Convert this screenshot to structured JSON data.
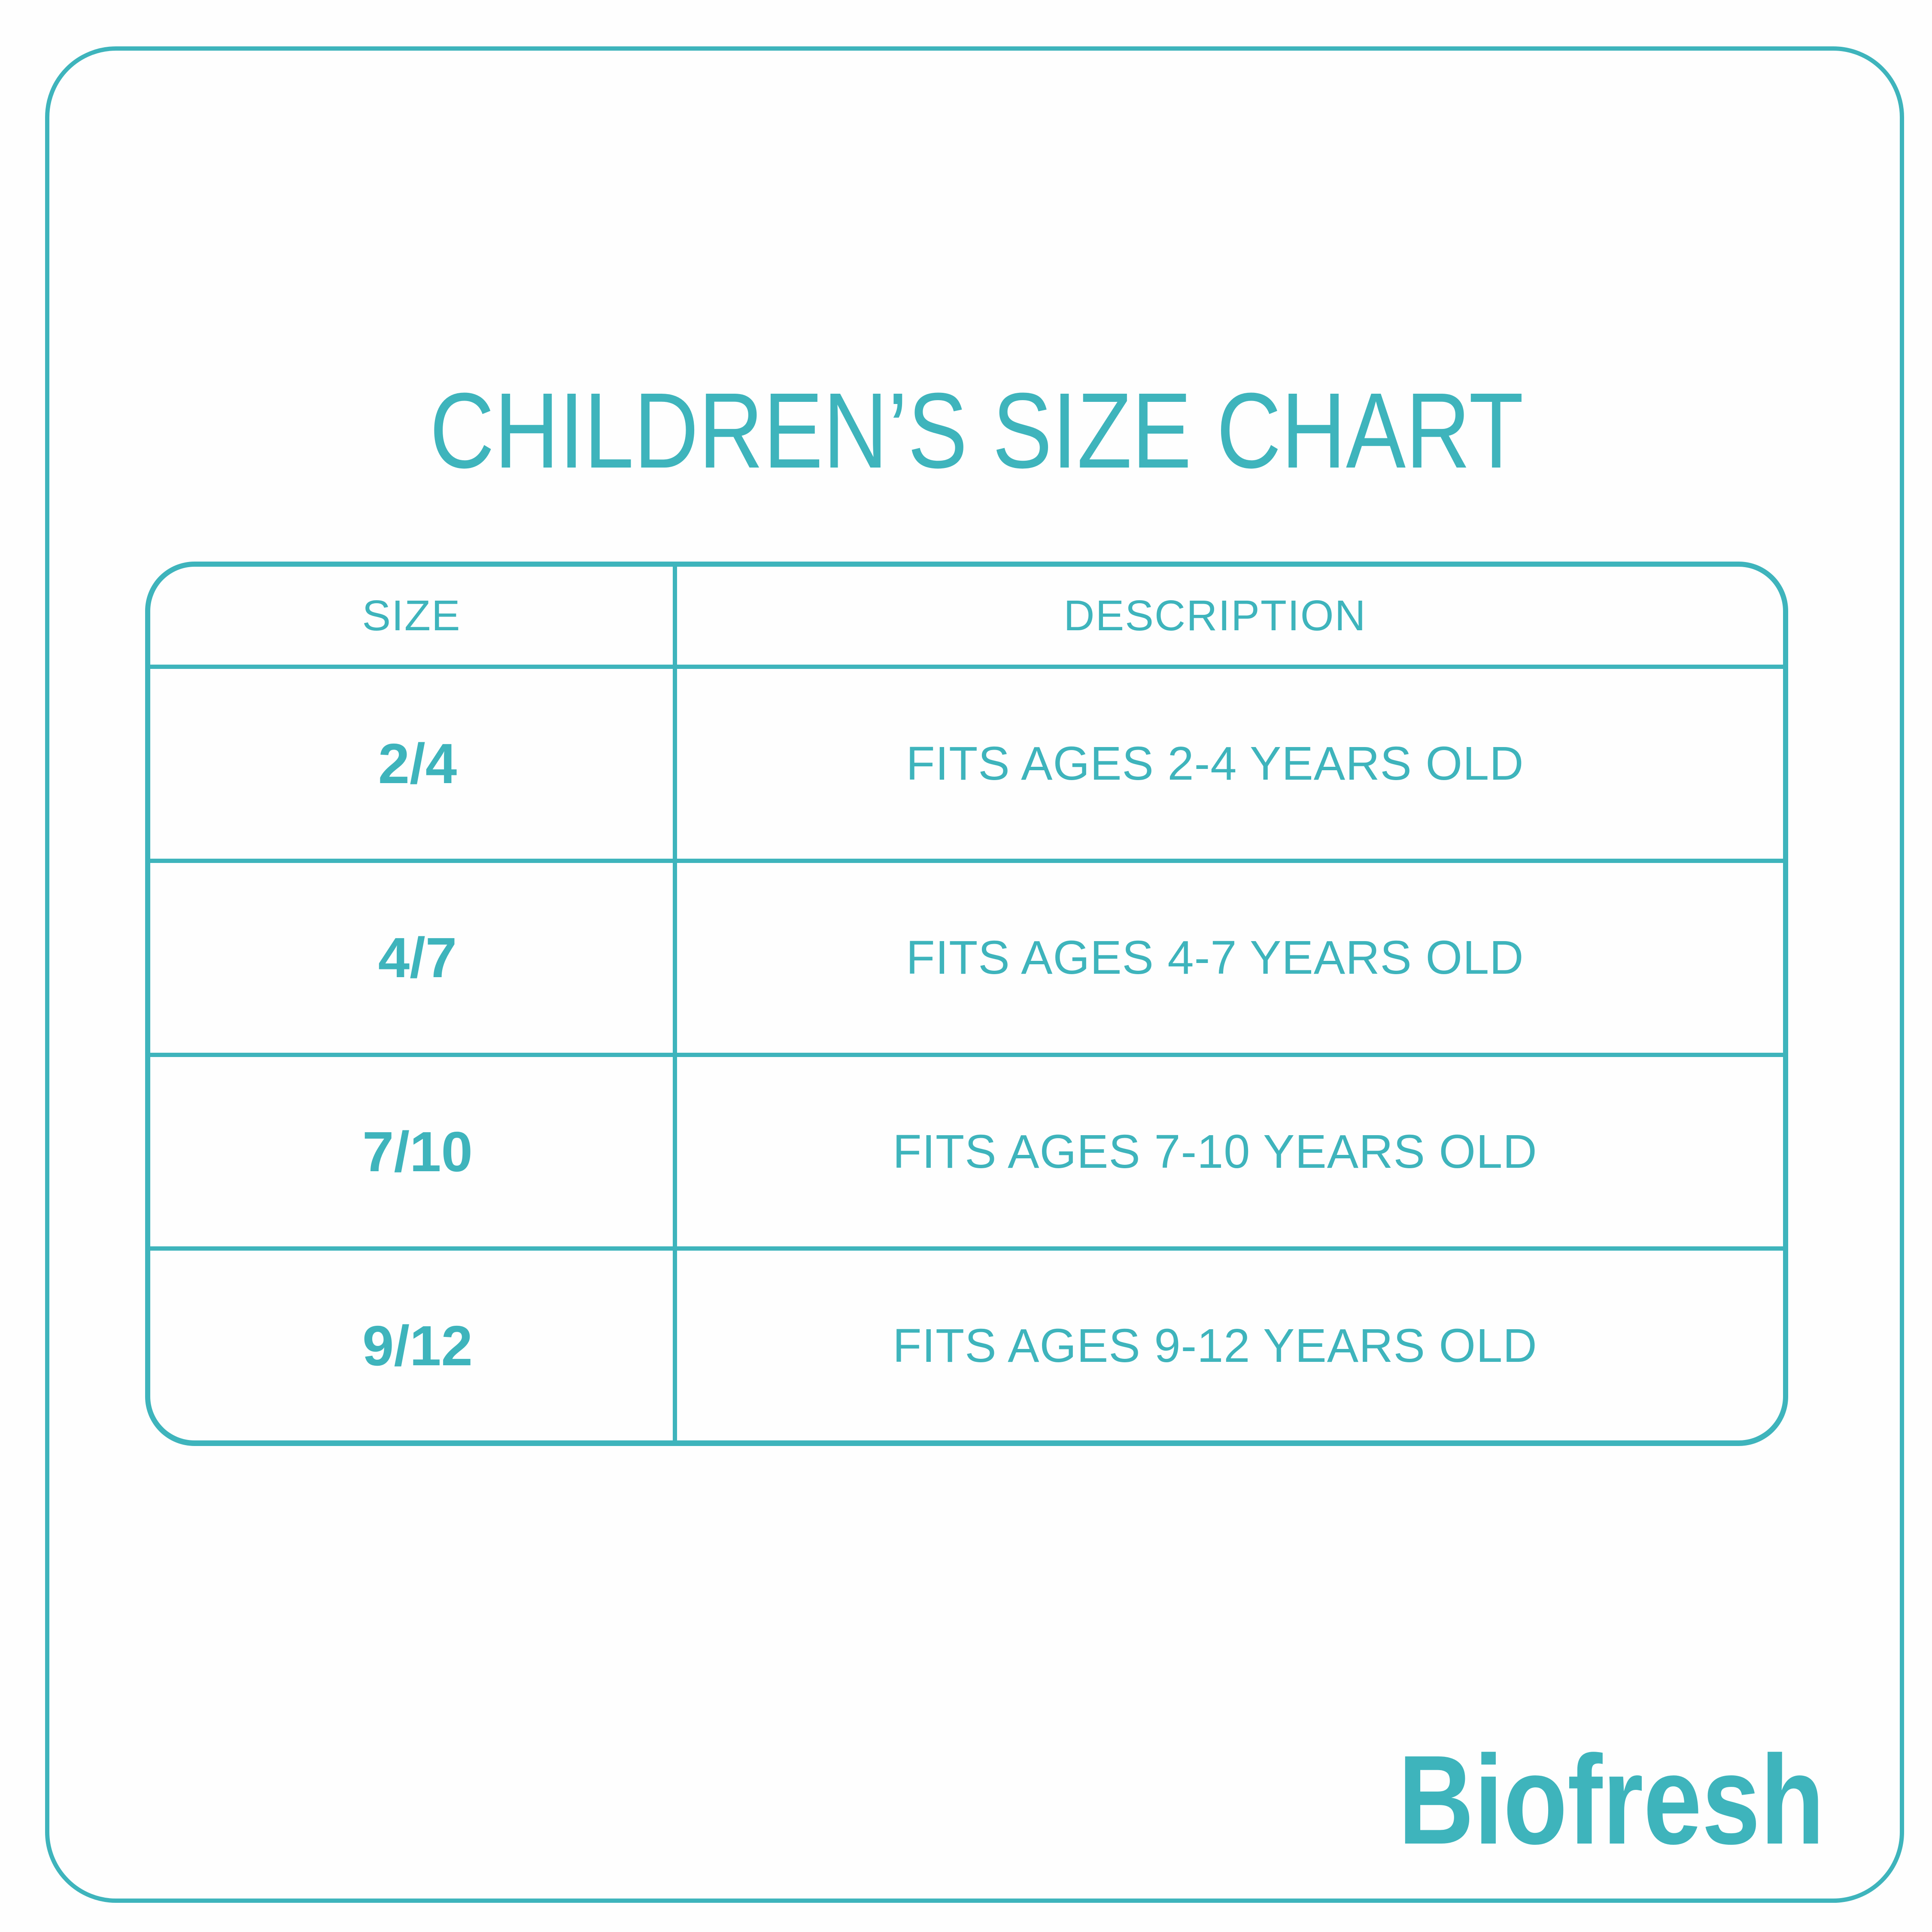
{
  "page": {
    "title": "CHILDREN’S SIZE CHART"
  },
  "table": {
    "columns": [
      "SIZE",
      "DESCRIPTION"
    ],
    "rows": [
      {
        "size": "2/4",
        "description": "FITS AGES 2-4 YEARS OLD"
      },
      {
        "size": "4/7",
        "description": "FITS AGES 4-7 YEARS OLD"
      },
      {
        "size": "7/10",
        "description": "FITS AGES 7-10 YEARS OLD"
      },
      {
        "size": "9/12",
        "description": "FITS AGES 9-12 YEARS OLD"
      }
    ]
  },
  "brand": {
    "logo_text": "Biofresh"
  },
  "colors": {
    "accent": "#3EB4BC",
    "background": "#FEFEFE"
  }
}
